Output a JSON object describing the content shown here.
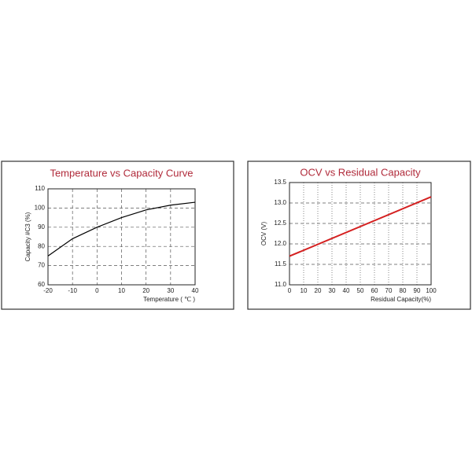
{
  "chart_data": [
    {
      "type": "line",
      "title": "Temperature vs Capacity Curve",
      "x_label": "Temperature ( ℃ )",
      "y_label": "Capacity #C3 (%)",
      "x": [
        -20,
        -10,
        0,
        10,
        20,
        30,
        40
      ],
      "series": [
        {
          "color": "#000000",
          "values": [
            75,
            84,
            90,
            95,
            99,
            101.5,
            103
          ]
        }
      ],
      "xlim": [
        -20,
        40
      ],
      "xticks": [
        -20,
        -10,
        0,
        10,
        20,
        30,
        40
      ],
      "ylim": [
        60,
        110
      ],
      "yticks": [
        60,
        70,
        80,
        90,
        100,
        110
      ],
      "grid": true
    },
    {
      "type": "line",
      "title": "OCV  vs Residual Capacity",
      "x_label": "Residual Capacity(%)",
      "y_label": "OCV (V)",
      "x": [
        0,
        100
      ],
      "series": [
        {
          "color": "#d42020",
          "values": [
            11.7,
            13.15
          ]
        }
      ],
      "xlim": [
        0,
        100
      ],
      "xticks": [
        0,
        10,
        20,
        30,
        40,
        50,
        60,
        70,
        80,
        90,
        100
      ],
      "ylim": [
        11,
        13.5
      ],
      "yticks": [
        {
          "value": 11,
          "label": "11.0"
        },
        11.5,
        {
          "value": 12,
          "label": "12.0"
        },
        12.5,
        {
          "value": 13,
          "label": "13.0"
        },
        13.5
      ],
      "grid": true
    }
  ]
}
